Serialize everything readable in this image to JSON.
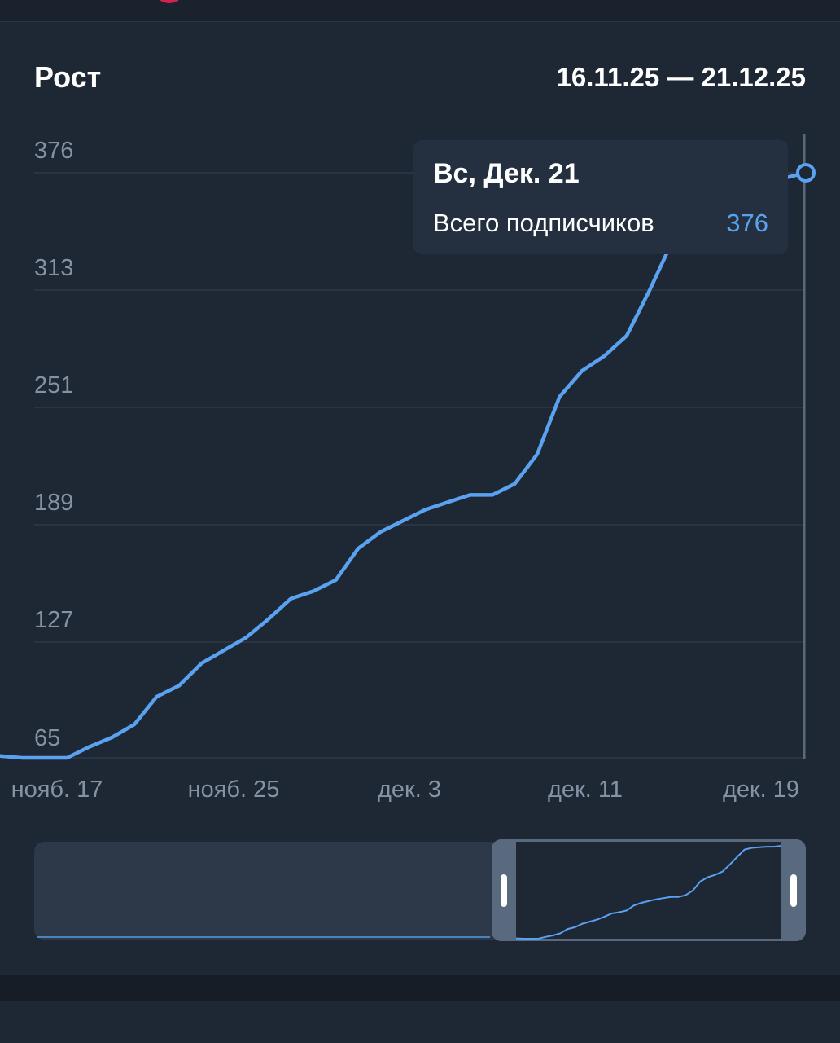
{
  "header": {
    "title": "Рост",
    "date_range": "16.11.25 — 21.12.25"
  },
  "tooltip": {
    "date": "Вс, Дек. 21",
    "label": "Всего подписчиков",
    "value": "376"
  },
  "colors": {
    "line": "#5aa1ef",
    "background": "#1e2734",
    "grid": "#2e3947"
  },
  "chart_data": {
    "type": "line",
    "title": "Рост",
    "xlabel": "",
    "ylabel": "",
    "y_ticks": [
      "65",
      "127",
      "189",
      "251",
      "313",
      "376"
    ],
    "x_ticks": [
      "нояб. 17",
      "нояб. 25",
      "дек. 3",
      "дек. 11",
      "дек. 19"
    ],
    "ylim": [
      60,
      376
    ],
    "x_range": [
      "2025-11-15",
      "2025-12-21"
    ],
    "grid": true,
    "series": [
      {
        "name": "Всего подписчиков",
        "x": [
          "2025-11-15",
          "2025-11-16",
          "2025-11-17",
          "2025-11-18",
          "2025-11-19",
          "2025-11-20",
          "2025-11-21",
          "2025-11-22",
          "2025-11-23",
          "2025-11-24",
          "2025-11-25",
          "2025-11-26",
          "2025-11-27",
          "2025-11-28",
          "2025-11-29",
          "2025-11-30",
          "2025-12-01",
          "2025-12-02",
          "2025-12-03",
          "2025-12-04",
          "2025-12-05",
          "2025-12-06",
          "2025-12-07",
          "2025-12-08",
          "2025-12-09",
          "2025-12-10",
          "2025-12-11",
          "2025-12-12",
          "2025-12-13",
          "2025-12-14",
          "2025-12-15",
          "2025-12-16",
          "2025-12-17",
          "2025-12-18",
          "2025-12-19",
          "2025-12-20",
          "2025-12-21"
        ],
        "values": [
          61,
          60,
          60,
          60,
          66,
          71,
          78,
          93,
          99,
          111,
          118,
          125,
          135,
          146,
          150,
          156,
          173,
          182,
          188,
          194,
          198,
          202,
          202,
          208,
          224,
          255,
          269,
          277,
          288,
          312,
          338,
          363,
          369,
          371,
          373,
          373,
          376
        ]
      }
    ]
  }
}
